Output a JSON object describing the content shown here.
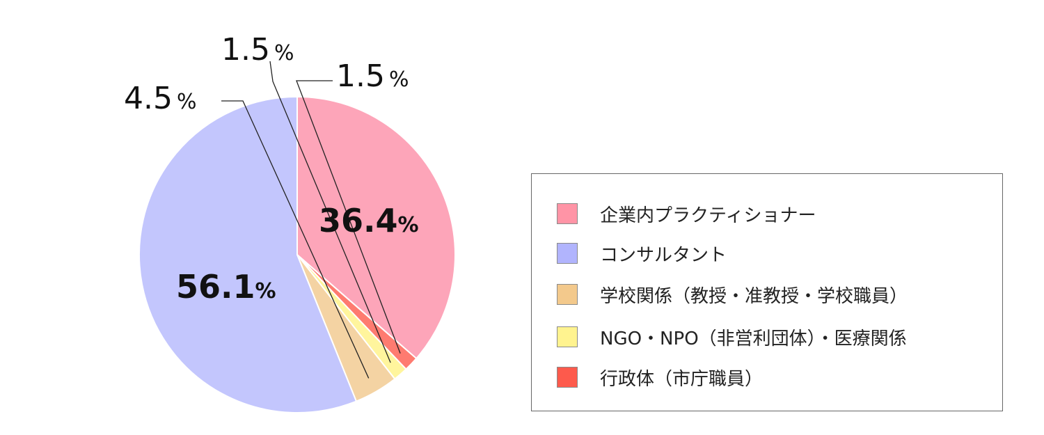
{
  "chart_data": {
    "type": "pie",
    "slices": [
      {
        "label": "企業内プラクティショナー",
        "value": 36.4,
        "value_text": "36.4",
        "color": "#fda5b9"
      },
      {
        "label": "コンサルタント",
        "value": 56.1,
        "value_text": "56.1",
        "color": "#c3c6fd"
      },
      {
        "label": "学校関係（教授・准教授・学校職員）",
        "value": 4.5,
        "value_text": "4.5",
        "color": "#f4d3a3"
      },
      {
        "label": "NGO・NPO（非営利団体）・医療関係",
        "value": 1.5,
        "value_text": "1.5",
        "color": "#fff59d"
      },
      {
        "label": "行政体（市庁職員）",
        "value": 1.5,
        "value_text": "1.5",
        "color": "#fe7b70"
      }
    ],
    "unit": "%",
    "legend_position": "right"
  },
  "legend": {
    "swatch_colors": [
      "#ff94a6",
      "#b1b4fd",
      "#f3c98c",
      "#fff38f",
      "#fd5a4c"
    ]
  }
}
